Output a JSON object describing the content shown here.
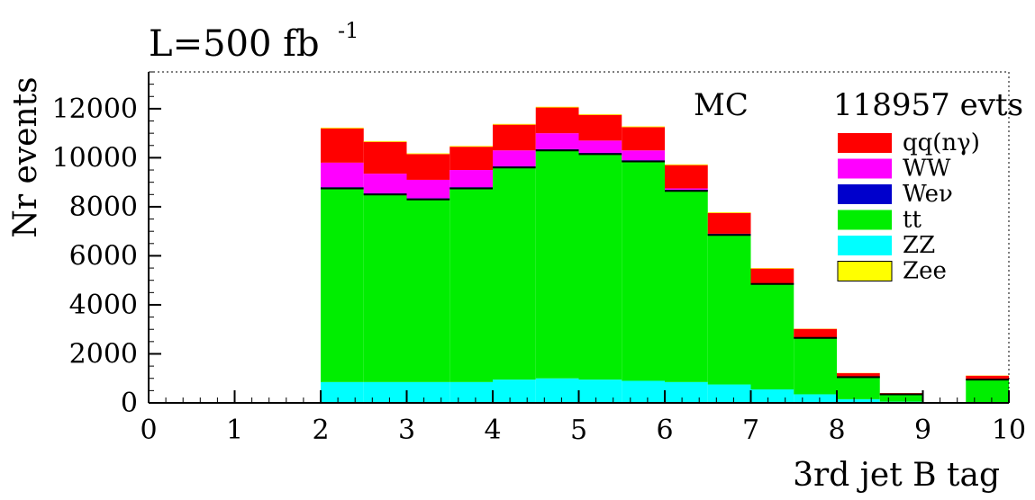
{
  "chart_data": {
    "type": "bar",
    "stacked": true,
    "histogram": true,
    "title": "L=500 fb",
    "title_superscript": "-1",
    "xlabel": "3rd jet B tag",
    "ylabel": "Nr events",
    "xlim": [
      0,
      10
    ],
    "ylim": [
      0,
      13500
    ],
    "x_ticks": [
      0,
      1,
      2,
      3,
      4,
      5,
      6,
      7,
      8,
      9,
      10
    ],
    "y_ticks": [
      0,
      2000,
      4000,
      6000,
      8000,
      10000,
      12000
    ],
    "annotation_left": "MC",
    "annotation_right": "118957 evts",
    "bin_edges": [
      2.0,
      2.5,
      3.0,
      3.5,
      4.0,
      4.5,
      5.0,
      5.5,
      6.0,
      6.5,
      7.0,
      7.5,
      8.0,
      8.5,
      9.0,
      9.5,
      10.0
    ],
    "series": [
      {
        "name": "ZZ",
        "color": "#00ffff",
        "values": [
          850,
          850,
          850,
          850,
          950,
          1000,
          950,
          900,
          850,
          750,
          550,
          350,
          150,
          50,
          0,
          0
        ]
      },
      {
        "name": "tt",
        "color": "#00ee00",
        "values": [
          7900,
          7650,
          7450,
          7900,
          8650,
          9300,
          9200,
          8950,
          7800,
          6100,
          4300,
          2300,
          900,
          300,
          0,
          950
        ]
      },
      {
        "name": "Weν",
        "color": "#0000cc",
        "values": [
          50,
          50,
          50,
          50,
          50,
          50,
          50,
          50,
          50,
          50,
          30,
          20,
          10,
          0,
          0,
          10
        ]
      },
      {
        "name": "WW",
        "color": "#ff00ff",
        "values": [
          1000,
          800,
          750,
          700,
          650,
          650,
          500,
          400,
          50,
          0,
          0,
          0,
          0,
          0,
          0,
          0
        ]
      },
      {
        "name": "qq(nγ)",
        "color": "#ff0000",
        "values": [
          1400,
          1300,
          1050,
          950,
          1050,
          1050,
          1050,
          950,
          950,
          850,
          600,
          350,
          150,
          50,
          0,
          150
        ]
      },
      {
        "name": "Zee",
        "color": "#ffff00",
        "values": [
          30,
          30,
          30,
          30,
          30,
          30,
          30,
          30,
          30,
          30,
          20,
          10,
          10,
          0,
          0,
          10
        ]
      }
    ],
    "legend": {
      "position": "top-right",
      "order": [
        "qq(nγ)",
        "WW",
        "Weν",
        "tt",
        "ZZ",
        "Zee"
      ]
    },
    "grid": false
  }
}
